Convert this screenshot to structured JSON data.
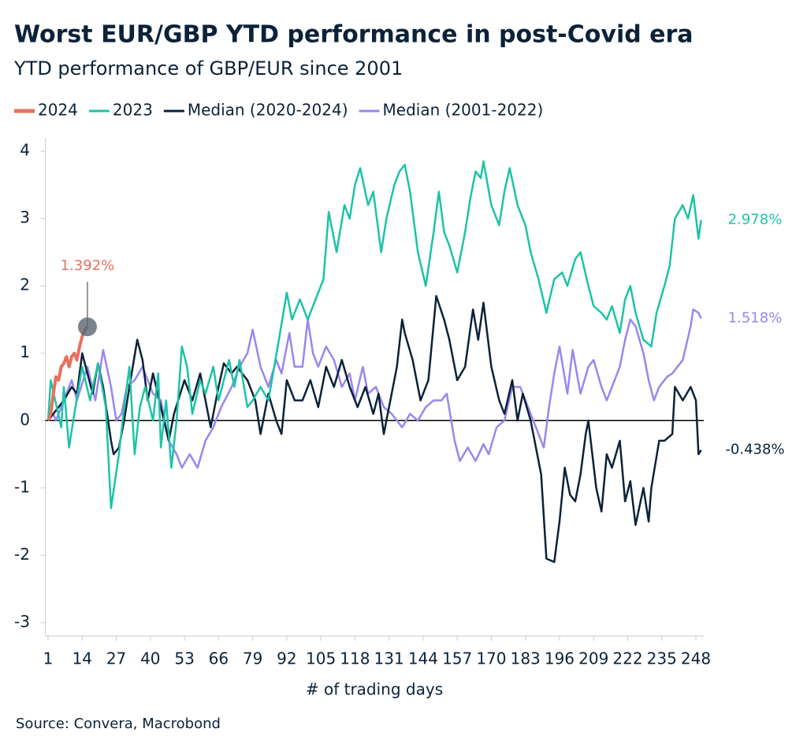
{
  "chart_data": {
    "type": "line",
    "title": "Worst EUR/GBP YTD performance in post-Covid era",
    "subtitle": "YTD performance of GBP/EUR since 2001",
    "x_label": "# of trading days",
    "source": "Source: Convera, Macrobond",
    "xlim": [
      0,
      251
    ],
    "ylim": [
      -3.2,
      4.2
    ],
    "xticks": [
      1,
      14,
      27,
      40,
      53,
      66,
      79,
      92,
      105,
      118,
      131,
      144,
      157,
      170,
      183,
      196,
      209,
      222,
      235,
      248
    ],
    "yticks": [
      -3,
      -2,
      -1,
      0,
      1,
      2,
      3,
      4
    ],
    "reference_line": 0,
    "series": [
      {
        "name": "2024",
        "color": "#e8705f",
        "end_label": "1.392%",
        "marker": true,
        "x": [
          1,
          2,
          3,
          4,
          5,
          6,
          7,
          8,
          9,
          10,
          11,
          12,
          13,
          14,
          15,
          16
        ],
        "values": [
          0,
          0.1,
          0.4,
          0.65,
          0.6,
          0.8,
          0.85,
          0.95,
          0.8,
          0.95,
          1.0,
          0.9,
          1.1,
          1.25,
          1.35,
          1.392
        ]
      },
      {
        "name": "2023",
        "color": "#1cc4a6",
        "end_label": "2.978%",
        "x": [
          1,
          2,
          6,
          7,
          9,
          11,
          14,
          17,
          20,
          23,
          25,
          28,
          30,
          32,
          34,
          36,
          38,
          41,
          43,
          44,
          46,
          48,
          50,
          52,
          54,
          56,
          59,
          61,
          64,
          66,
          70,
          72,
          74,
          77,
          79,
          82,
          85,
          89,
          92,
          94,
          97,
          100,
          103,
          106,
          108,
          111,
          114,
          116,
          118,
          120,
          123,
          125,
          128,
          130,
          133,
          135,
          137,
          139,
          142,
          145,
          148,
          150,
          152,
          154,
          157,
          160,
          162,
          164,
          166,
          167,
          170,
          173,
          175,
          177,
          180,
          183,
          185,
          188,
          191,
          194,
          197,
          199,
          202,
          204,
          207,
          209,
          212,
          214,
          216,
          219,
          221,
          223,
          225,
          228,
          231,
          233,
          236,
          238,
          240,
          243,
          245,
          247,
          249,
          250
        ],
        "values": [
          0,
          0.6,
          -0.1,
          0.5,
          -0.4,
          0.1,
          0.8,
          0.3,
          0.85,
          0.2,
          -1.3,
          -0.5,
          0.2,
          0.8,
          -0.5,
          0.2,
          0.5,
          0.0,
          0.7,
          -0.4,
          0.3,
          -0.7,
          0.0,
          1.1,
          0.8,
          0.1,
          0.6,
          0.4,
          0.8,
          0.3,
          0.9,
          0.5,
          0.9,
          0.2,
          0.3,
          0.5,
          0.3,
          1.2,
          1.9,
          1.5,
          1.8,
          1.5,
          1.8,
          2.1,
          3.1,
          2.5,
          3.2,
          3.0,
          3.5,
          3.75,
          3.2,
          3.4,
          2.5,
          3.0,
          3.5,
          3.7,
          3.8,
          3.4,
          2.5,
          2.0,
          2.8,
          3.4,
          2.8,
          2.6,
          2.2,
          2.8,
          3.3,
          3.7,
          3.6,
          3.85,
          3.2,
          2.9,
          3.4,
          3.75,
          3.2,
          2.9,
          2.5,
          2.1,
          1.6,
          2.1,
          2.2,
          2.0,
          2.4,
          2.5,
          2.0,
          1.7,
          1.6,
          1.5,
          1.7,
          1.3,
          1.8,
          2.0,
          1.6,
          1.2,
          1.1,
          1.6,
          2.0,
          2.3,
          3.0,
          3.2,
          3.0,
          3.35,
          2.7,
          2.978
        ]
      },
      {
        "name": "Median (2020-2024)",
        "color": "#0b2239",
        "end_label": "-0.438%",
        "x": [
          1,
          7,
          10,
          12,
          14,
          16,
          18,
          20,
          22,
          25,
          26,
          28,
          30,
          32,
          35,
          37,
          39,
          41,
          44,
          47,
          49,
          53,
          56,
          59,
          63,
          66,
          68,
          71,
          73,
          77,
          80,
          82,
          85,
          88,
          90,
          92,
          95,
          98,
          101,
          104,
          107,
          110,
          113,
          116,
          119,
          122,
          125,
          127,
          129,
          131,
          134,
          136,
          137,
          140,
          143,
          146,
          149,
          152,
          154,
          157,
          160,
          163,
          165,
          167,
          170,
          173,
          175,
          178,
          180,
          182,
          185,
          187,
          189,
          191,
          194,
          196,
          198,
          200,
          202,
          204,
          206,
          207,
          210,
          212,
          214,
          216,
          219,
          221,
          223,
          225,
          228,
          230,
          231,
          234,
          236,
          239,
          240,
          243,
          246,
          248,
          249,
          250
        ],
        "values": [
          0,
          0.3,
          0.5,
          0.4,
          1.0,
          0.7,
          0.4,
          0.85,
          0.5,
          -0.3,
          -0.5,
          -0.4,
          0.0,
          0.5,
          1.2,
          0.9,
          0.3,
          0.7,
          0.2,
          -0.3,
          0.1,
          0.6,
          0.3,
          0.7,
          -0.1,
          0.5,
          0.85,
          0.7,
          0.8,
          0.6,
          0.3,
          -0.2,
          0.4,
          0.0,
          -0.2,
          0.6,
          0.3,
          0.3,
          0.6,
          0.2,
          0.8,
          0.5,
          0.9,
          0.5,
          0.2,
          0.5,
          0.1,
          0.4,
          -0.2,
          0.2,
          0.8,
          1.5,
          1.3,
          0.9,
          0.3,
          0.6,
          1.85,
          1.5,
          1.2,
          0.6,
          0.8,
          1.65,
          1.2,
          1.75,
          0.8,
          0.3,
          0.1,
          0.6,
          0.0,
          0.4,
          0.0,
          -0.4,
          -0.8,
          -2.05,
          -2.1,
          -1.5,
          -0.7,
          -1.1,
          -1.2,
          -0.8,
          -0.2,
          0.0,
          -1.0,
          -1.35,
          -0.5,
          -0.7,
          -0.3,
          -1.2,
          -0.9,
          -1.55,
          -1.0,
          -1.5,
          -1.0,
          -0.3,
          -0.3,
          -0.2,
          0.5,
          0.3,
          0.5,
          0.3,
          -0.5,
          -0.438
        ]
      },
      {
        "name": "Median (2001-2022)",
        "color": "#9b85f0",
        "end_label": "1.518%",
        "x": [
          1,
          3,
          4,
          7,
          10,
          12,
          16,
          19,
          22,
          25,
          27,
          29,
          31,
          34,
          37,
          41,
          44,
          47,
          50,
          52,
          55,
          58,
          61,
          64,
          67,
          71,
          74,
          77,
          79,
          82,
          85,
          88,
          90,
          93,
          95,
          98,
          100,
          102,
          104,
          107,
          110,
          113,
          116,
          118,
          121,
          123,
          126,
          129,
          132,
          136,
          139,
          142,
          145,
          148,
          151,
          153,
          156,
          158,
          161,
          164,
          167,
          169,
          172,
          175,
          178,
          181,
          184,
          187,
          190,
          192,
          194,
          196,
          199,
          201,
          204,
          207,
          209,
          212,
          214,
          216,
          219,
          221,
          223,
          225,
          228,
          230,
          232,
          234,
          237,
          239,
          243,
          246,
          247,
          249,
          250
        ],
        "values": [
          0,
          0.1,
          0.0,
          0.3,
          0.6,
          0.3,
          0.8,
          0.3,
          1.05,
          0.5,
          0.0,
          0.1,
          0.5,
          0.6,
          0.8,
          0.4,
          0.3,
          -0.3,
          -0.5,
          -0.7,
          -0.5,
          -0.7,
          -0.3,
          -0.1,
          0.2,
          0.5,
          0.8,
          1.0,
          1.35,
          0.8,
          0.5,
          0.9,
          0.7,
          1.3,
          0.8,
          0.8,
          1.5,
          1.0,
          0.8,
          1.1,
          0.9,
          0.5,
          0.7,
          0.3,
          0.8,
          0.4,
          0.5,
          0.2,
          0.1,
          -0.1,
          0.1,
          0.0,
          0.2,
          0.3,
          0.3,
          0.4,
          -0.3,
          -0.6,
          -0.4,
          -0.6,
          -0.35,
          -0.5,
          -0.1,
          0.0,
          0.5,
          0.5,
          0.2,
          -0.1,
          -0.4,
          0.2,
          0.7,
          1.1,
          0.4,
          1.05,
          0.4,
          0.8,
          0.9,
          0.5,
          0.3,
          0.5,
          0.8,
          1.2,
          1.5,
          1.4,
          1.0,
          0.6,
          0.3,
          0.5,
          0.65,
          0.7,
          0.9,
          1.4,
          1.65,
          1.6,
          1.518
        ]
      }
    ]
  }
}
